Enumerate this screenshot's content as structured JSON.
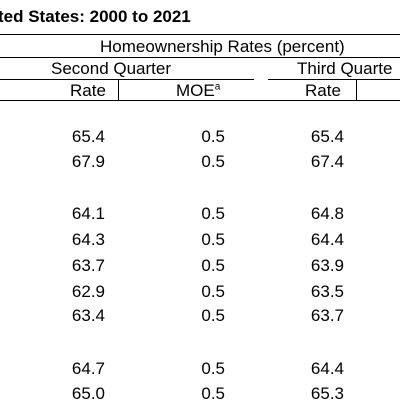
{
  "title": "ted States: 2000 to 2021",
  "header": {
    "group": "Homeownership Rates (percent)",
    "second_quarter": "Second Quarter",
    "third_quarter": "Third Quarte",
    "rate": "Rate",
    "moe": "MOE",
    "moe_sup": "a"
  },
  "groups": [
    {
      "rows": [
        {
          "q2_rate": "65.4",
          "q2_moe": "0.5",
          "q3_rate": "65.4"
        },
        {
          "q2_rate": "67.9",
          "q2_moe": "0.5",
          "q3_rate": "67.4"
        }
      ]
    },
    {
      "rows": [
        {
          "q2_rate": "64.1",
          "q2_moe": "0.5",
          "q3_rate": "64.8"
        },
        {
          "q2_rate": "64.3",
          "q2_moe": "0.5",
          "q3_rate": "64.4"
        },
        {
          "q2_rate": "63.7",
          "q2_moe": "0.5",
          "q3_rate": "63.9"
        },
        {
          "q2_rate": "62.9",
          "q2_moe": "0.5",
          "q3_rate": "63.5"
        },
        {
          "q2_rate": "63.4",
          "q2_moe": "0.5",
          "q3_rate": "63.7"
        }
      ]
    },
    {
      "rows": [
        {
          "q2_rate": "64.7",
          "q2_moe": "0.5",
          "q3_rate": "64.4"
        },
        {
          "q2_rate": "65.0",
          "q2_moe": "0.5",
          "q3_rate": "65.3"
        }
      ]
    }
  ]
}
